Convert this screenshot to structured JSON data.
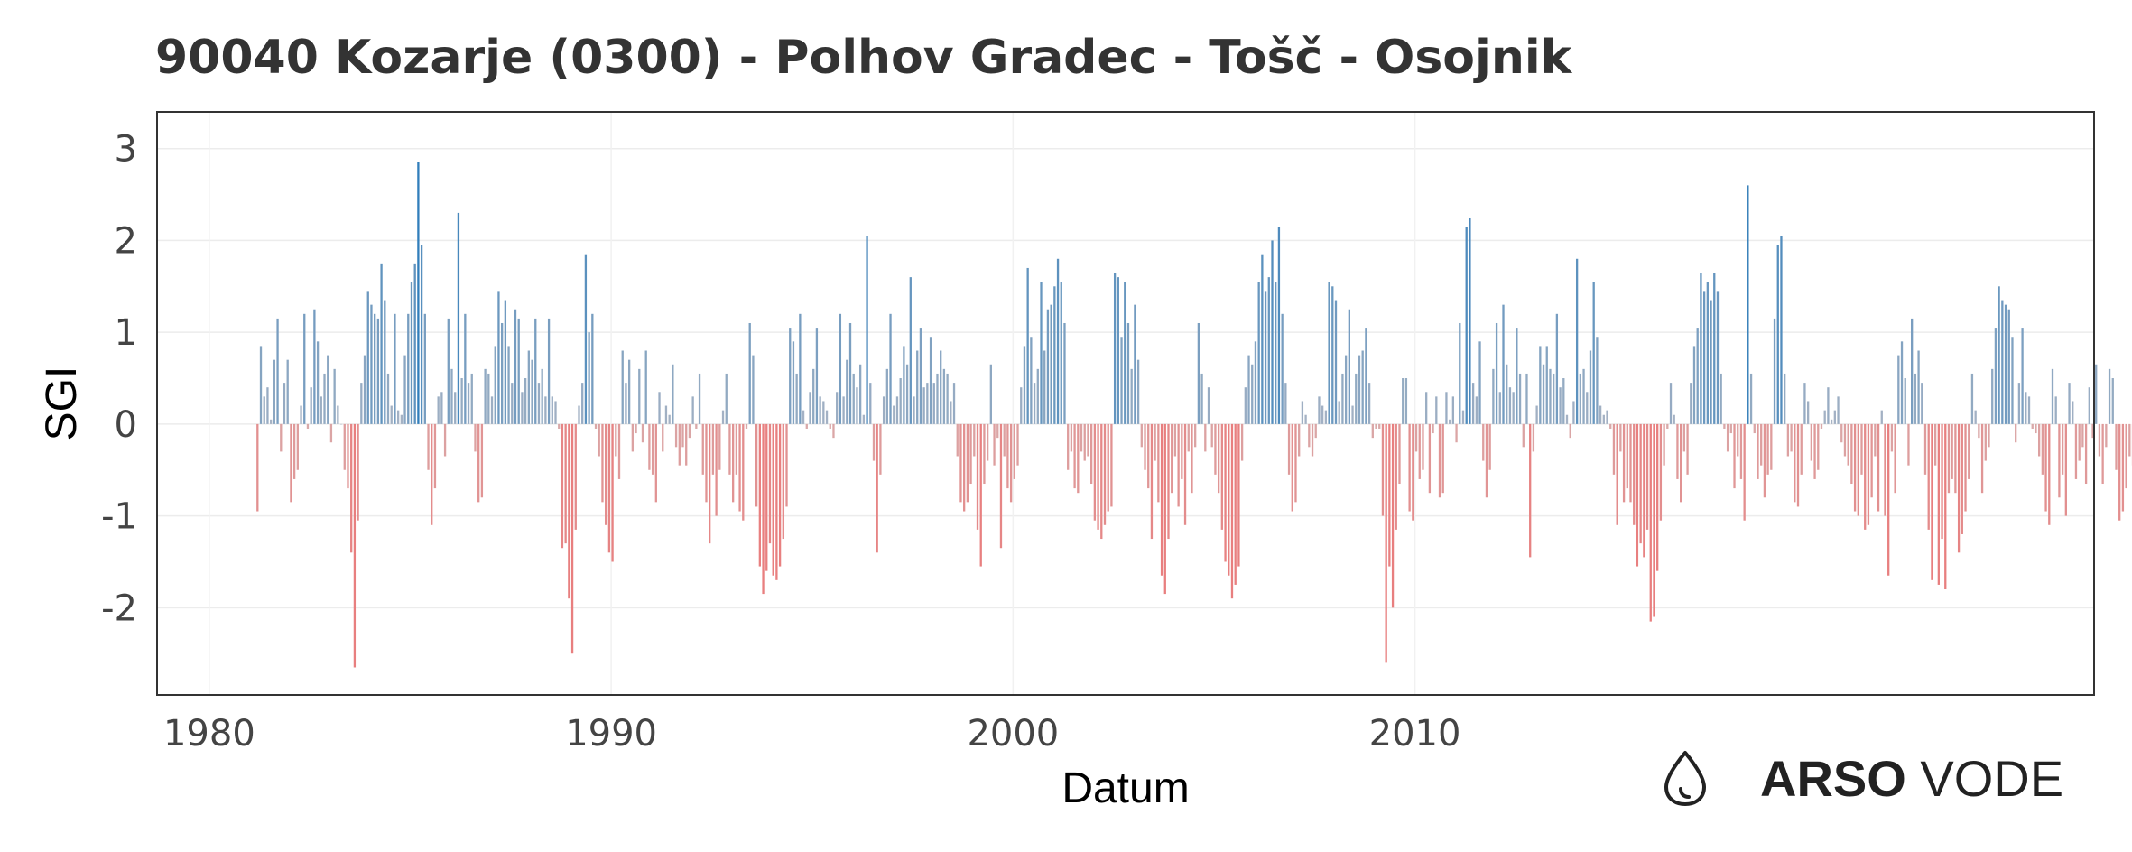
{
  "chart_data": {
    "type": "bar",
    "title": "90040 Kozarje (0300) - Polhov Gradec - Tošč - Osojnik",
    "xlabel": "Datum",
    "ylabel": "SGI",
    "x_ticks": [
      "1980",
      "1990",
      "2000",
      "2010"
    ],
    "y_ticks": [
      "3",
      "2",
      "1",
      "0",
      "-1",
      "-2"
    ],
    "xlim": [
      1978.7,
      2026.9
    ],
    "ylim": [
      -2.95,
      3.4
    ],
    "grid": true,
    "colors": {
      "positive": "#2b7bba",
      "positive_light": "#a9b4c4",
      "negative": "#e87f7f",
      "negative_light": "#d9aaaa"
    },
    "x_start": 1981.2,
    "x_step": 0.0833333,
    "values": [
      -0.95,
      0.85,
      0.3,
      0.4,
      0.05,
      0.7,
      1.15,
      -0.3,
      0.45,
      0.7,
      -0.85,
      -0.6,
      -0.5,
      0.2,
      1.2,
      -0.05,
      0.4,
      1.25,
      0.9,
      0.3,
      0.55,
      0.75,
      -0.2,
      0.6,
      0.2,
      0.0,
      -0.5,
      -0.7,
      -1.4,
      -2.65,
      -1.05,
      0.45,
      0.75,
      1.45,
      1.3,
      1.2,
      1.15,
      1.75,
      1.35,
      0.55,
      0.2,
      1.2,
      0.15,
      0.1,
      0.75,
      1.2,
      1.55,
      1.75,
      2.85,
      1.95,
      1.2,
      -0.5,
      -1.1,
      -0.7,
      0.3,
      0.35,
      -0.35,
      1.15,
      0.6,
      0.35,
      2.3,
      0.5,
      1.2,
      0.45,
      0.55,
      -0.3,
      -0.85,
      -0.8,
      0.6,
      0.55,
      0.3,
      0.85,
      1.45,
      1.1,
      1.35,
      0.85,
      0.45,
      1.25,
      1.15,
      0.35,
      0.5,
      0.8,
      0.7,
      1.15,
      0.45,
      0.6,
      0.3,
      1.15,
      0.3,
      0.25,
      -0.05,
      -1.35,
      -1.3,
      -1.9,
      -2.5,
      -1.15,
      0.2,
      0.45,
      1.85,
      1.0,
      1.2,
      -0.05,
      -0.35,
      -0.85,
      -1.1,
      -1.4,
      -1.5,
      -0.35,
      -0.6,
      0.8,
      0.45,
      0.7,
      -0.3,
      -0.1,
      0.6,
      -0.2,
      0.8,
      -0.5,
      -0.55,
      -0.85,
      0.35,
      -0.3,
      0.2,
      0.1,
      0.65,
      -0.25,
      -0.45,
      -0.25,
      -0.45,
      -0.15,
      0.3,
      -0.05,
      0.55,
      -0.55,
      -0.85,
      -1.3,
      -0.55,
      -1.0,
      -0.5,
      0.15,
      0.55,
      -0.55,
      -0.85,
      -0.55,
      -0.95,
      -1.05,
      -0.05,
      1.1,
      0.75,
      -0.9,
      -1.55,
      -1.85,
      -1.6,
      -1.3,
      -1.65,
      -1.7,
      -1.55,
      -1.25,
      -0.9,
      1.05,
      0.9,
      0.55,
      1.2,
      0.15,
      -0.05,
      0.35,
      0.6,
      1.05,
      0.3,
      0.25,
      0.15,
      -0.05,
      -0.15,
      0.35,
      1.2,
      0.3,
      0.7,
      1.1,
      0.55,
      0.4,
      0.65,
      0.1,
      2.05,
      0.45,
      -0.4,
      -1.4,
      -0.55,
      0.3,
      0.6,
      1.2,
      0.2,
      0.3,
      0.5,
      0.85,
      0.65,
      1.6,
      0.3,
      0.8,
      1.05,
      0.4,
      0.45,
      0.95,
      0.45,
      0.55,
      0.8,
      0.6,
      0.55,
      0.25,
      0.45,
      -0.35,
      -0.85,
      -0.95,
      -0.85,
      -0.65,
      -0.35,
      -1.15,
      -1.55,
      -0.65,
      -0.4,
      0.65,
      -0.45,
      -0.15,
      -1.35,
      -0.35,
      -0.7,
      -0.85,
      -0.6,
      -0.45,
      0.4,
      0.85,
      1.7,
      0.95,
      0.45,
      0.6,
      1.55,
      0.8,
      1.25,
      1.3,
      1.5,
      1.8,
      1.55,
      1.1,
      -0.5,
      -0.3,
      -0.7,
      -0.75,
      -0.3,
      -0.4,
      -0.35,
      -0.65,
      -1.05,
      -1.15,
      -1.25,
      -1.1,
      -0.95,
      -0.9,
      1.65,
      1.6,
      0.95,
      1.55,
      1.1,
      0.6,
      1.3,
      0.7,
      -0.25,
      -0.5,
      -0.7,
      -1.25,
      -0.4,
      -0.85,
      -1.65,
      -1.85,
      -1.25,
      -0.75,
      -0.35,
      -0.9,
      -0.6,
      -1.1,
      -0.3,
      -0.75,
      -0.25,
      1.1,
      0.55,
      -0.3,
      0.4,
      -0.25,
      -0.55,
      -0.75,
      -1.15,
      -1.5,
      -1.65,
      -1.9,
      -1.75,
      -1.55,
      -0.4,
      0.4,
      0.75,
      0.65,
      0.9,
      1.55,
      1.85,
      1.45,
      1.6,
      2.0,
      1.55,
      2.15,
      1.2,
      0.45,
      -0.55,
      -0.95,
      -0.85,
      -0.35,
      0.25,
      0.1,
      -0.25,
      -0.35,
      -0.15,
      0.3,
      0.2,
      0.15,
      1.55,
      1.5,
      1.35,
      0.25,
      0.55,
      0.75,
      1.25,
      0.2,
      0.55,
      0.75,
      0.8,
      1.05,
      0.45,
      -0.15,
      -0.05,
      -0.05,
      -1.0,
      -2.6,
      -1.55,
      -2.0,
      -1.15,
      -0.65,
      0.5,
      0.5,
      -0.95,
      -1.05,
      -0.3,
      -0.6,
      -0.5,
      0.35,
      -0.75,
      -0.1,
      0.3,
      -0.8,
      -0.75,
      0.35,
      0.05,
      0.3,
      -0.2,
      1.1,
      0.15,
      2.15,
      2.25,
      0.45,
      0.3,
      0.9,
      -0.4,
      -0.8,
      -0.5,
      0.6,
      1.1,
      0.35,
      1.3,
      0.65,
      0.4,
      0.35,
      1.05,
      0.55,
      -0.25,
      0.55,
      -1.45,
      -0.3,
      0.2,
      0.85,
      0.65,
      0.85,
      0.6,
      0.55,
      1.2,
      0.4,
      0.5,
      0.1,
      -0.15,
      0.25,
      1.8,
      0.55,
      0.6,
      0.35,
      0.8,
      1.55,
      0.95,
      0.2,
      0.1,
      0.15,
      -0.05,
      -0.55,
      -1.1,
      -0.3,
      -0.85,
      -0.7,
      -0.85,
      -1.1,
      -1.55,
      -1.3,
      -1.45,
      -1.15,
      -2.15,
      -2.1,
      -1.6,
      -1.05,
      -0.45,
      -0.05,
      0.45,
      0.1,
      -0.6,
      -0.85,
      -0.3,
      -0.55,
      0.45,
      0.85,
      1.05,
      1.65,
      1.45,
      1.55,
      1.35,
      1.65,
      1.45,
      0.55,
      -0.05,
      -0.3,
      -0.1,
      -0.7,
      -0.35,
      -0.6,
      -1.05,
      2.6,
      0.55,
      -0.1,
      -0.6,
      -0.45,
      -0.8,
      -0.55,
      -0.5,
      1.15,
      1.95,
      2.05,
      0.55,
      -0.35,
      -0.3,
      -0.85,
      -0.9,
      -0.55,
      0.45,
      0.25,
      -0.4,
      -0.6,
      -0.5,
      -0.05,
      0.15,
      0.4,
      0.05,
      0.15,
      0.3,
      -0.2,
      -0.35,
      -0.45,
      -0.65,
      -0.95,
      -1.0,
      -0.55,
      -1.15,
      -1.1,
      -0.8,
      -0.35,
      -0.95,
      0.15,
      -1.0,
      -1.65,
      -0.3,
      -0.75,
      0.75,
      0.9,
      0.5,
      -0.45,
      1.15,
      0.55,
      0.8,
      0.45,
      -0.55,
      -1.15,
      -1.7,
      -0.45,
      -1.75,
      -1.25,
      -1.8,
      -0.75,
      -0.6,
      -0.75,
      -1.4,
      -1.2,
      -0.95,
      -0.6,
      0.55,
      0.15,
      -0.15,
      -0.75,
      -0.4,
      -0.25,
      0.6,
      1.05,
      1.5,
      1.35,
      1.3,
      1.25,
      0.95,
      -0.2,
      0.45,
      1.05,
      0.35,
      0.3,
      -0.05,
      -0.1,
      -0.35,
      -0.55,
      -0.95,
      -1.1,
      0.6,
      0.3,
      -0.8,
      -0.55,
      -1.0,
      0.45,
      0.25,
      -0.6,
      -0.4,
      -0.25,
      -0.65,
      0.4,
      -0.15,
      0.65,
      -0.35,
      -0.65,
      -0.25,
      0.6,
      0.5,
      -0.5,
      -1.05,
      -0.95,
      -0.7,
      -0.35,
      -0.45,
      -0.6,
      -0.3,
      -0.75,
      -0.85,
      -0.4,
      -1.25,
      -1.3,
      -1.5,
      -1.65,
      -1.2,
      -0.45,
      0.35,
      0.55,
      1.25,
      -0.25,
      -0.85,
      -1.05,
      -0.25,
      0.85,
      1.5,
      1.4,
      -0.5,
      -0.65,
      -0.75,
      -1.4,
      -1.0,
      -1.9,
      -1.25,
      -1.15,
      -1.55,
      -1.05,
      -0.95,
      -1.35,
      -1.85,
      -1.75,
      0.6,
      0.4,
      0.85,
      0.75,
      0.6,
      1.15,
      1.5,
      0.45,
      0.4,
      0.6,
      1.0,
      1.2,
      1.0,
      0.5,
      0.85,
      1.4,
      1.7,
      2.25,
      1.6,
      3.1,
      1.15,
      0.85,
      1.15,
      1.05,
      0.5,
      0.3,
      0.75,
      0.55,
      0.4,
      0.3,
      -0.2,
      2.15,
      1.4,
      1.35,
      0.85,
      0.85,
      1.35,
      -0.45,
      -0.55,
      -0.05,
      0.55,
      0.15,
      0.15
    ]
  },
  "brand": {
    "logo_icon": "drop-icon",
    "strong": "ARSO",
    "light": "VODE"
  }
}
